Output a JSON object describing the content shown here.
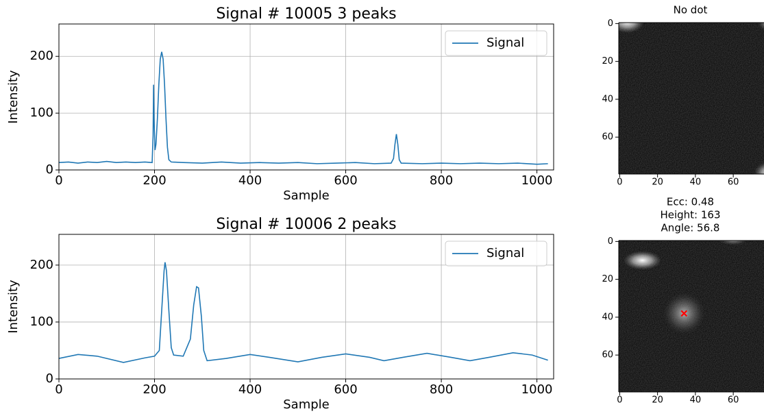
{
  "chart_data": [
    {
      "type": "line",
      "title": "Signal # 10005   3 peaks",
      "xlabel": "Sample",
      "ylabel": "Intensity",
      "xlim": [
        0,
        1035
      ],
      "ylim": [
        0,
        257
      ],
      "xticks": [
        0,
        200,
        400,
        600,
        800,
        1000
      ],
      "yticks": [
        0,
        100,
        200
      ],
      "grid": true,
      "legend": "upper right",
      "x": [
        0,
        20,
        40,
        60,
        80,
        100,
        120,
        140,
        160,
        180,
        195,
        197,
        198,
        199,
        201,
        203,
        206,
        209,
        212,
        215,
        218,
        221,
        224,
        227,
        230,
        235,
        260,
        300,
        340,
        380,
        420,
        460,
        500,
        540,
        580,
        620,
        660,
        695,
        700,
        703,
        706,
        709,
        712,
        716,
        760,
        800,
        840,
        880,
        920,
        960,
        1000,
        1023
      ],
      "series": [
        {
          "name": "Signal",
          "color": "#1f77b4",
          "values": [
            13,
            14,
            12,
            14,
            13,
            15,
            13,
            14,
            13,
            14,
            13,
            60,
            150,
            90,
            35,
            45,
            90,
            150,
            195,
            208,
            195,
            150,
            90,
            40,
            18,
            14,
            13,
            12,
            14,
            12,
            13,
            12,
            13,
            11,
            12,
            13,
            11,
            12,
            20,
            45,
            63,
            45,
            18,
            12,
            11,
            12,
            11,
            12,
            11,
            12,
            10,
            11
          ]
        }
      ]
    },
    {
      "type": "image",
      "title": [
        "No dot"
      ],
      "xlim": [
        -0.5,
        79.5
      ],
      "ylim": [
        79.5,
        -0.5
      ],
      "xticks": [
        0,
        20,
        40,
        60
      ],
      "yticks": [
        0,
        20,
        40,
        60
      ]
    },
    {
      "type": "line",
      "title": "Signal # 10006   2 peaks",
      "xlabel": "Sample",
      "ylabel": "Intensity",
      "xlim": [
        0,
        1035
      ],
      "ylim": [
        0,
        254
      ],
      "xticks": [
        0,
        200,
        400,
        600,
        800,
        1000
      ],
      "yticks": [
        0,
        100,
        200
      ],
      "grid": true,
      "legend": "upper right",
      "x": [
        0,
        40,
        80,
        135,
        180,
        200,
        210,
        215,
        220,
        222,
        225,
        230,
        235,
        240,
        260,
        275,
        282,
        288,
        292,
        298,
        303,
        310,
        350,
        400,
        440,
        500,
        550,
        600,
        650,
        680,
        720,
        770,
        820,
        860,
        900,
        950,
        990,
        1023
      ],
      "series": [
        {
          "name": "Signal",
          "color": "#1f77b4",
          "values": [
            36,
            43,
            40,
            29,
            37,
            40,
            50,
            120,
            190,
            205,
            190,
            120,
            55,
            42,
            40,
            70,
            130,
            162,
            160,
            110,
            50,
            32,
            36,
            43,
            38,
            30,
            38,
            44,
            38,
            32,
            38,
            45,
            38,
            32,
            38,
            46,
            42,
            33
          ]
        }
      ]
    },
    {
      "type": "image",
      "title": [
        "Ecc: 0.48",
        "Height: 163",
        "Angle: 56.8"
      ],
      "xlim": [
        -0.5,
        79.5
      ],
      "ylim": [
        79.5,
        -0.5
      ],
      "xticks": [
        0,
        20,
        40,
        60
      ],
      "yticks": [
        0,
        20,
        40,
        60
      ],
      "points": {
        "x": [
          34
        ],
        "y": [
          38
        ],
        "color": "#ff0000"
      }
    }
  ]
}
